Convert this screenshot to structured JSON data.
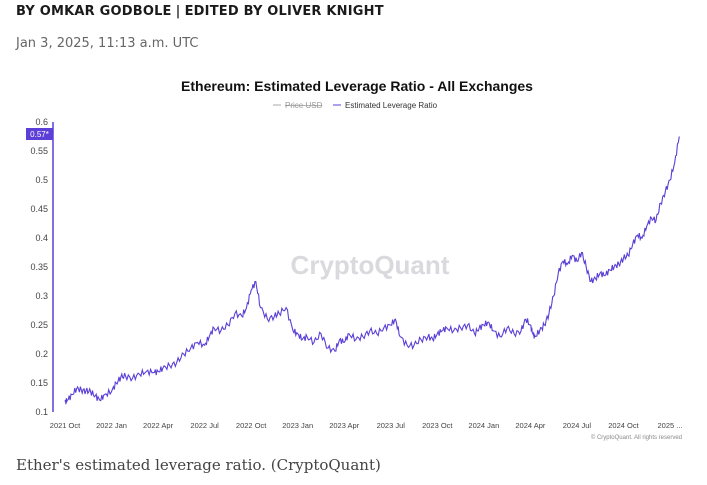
{
  "article": {
    "author": "BY OMKAR GODBOLE",
    "separator": "|",
    "editor": "EDITED BY OLIVER KNIGHT",
    "date": "Jan 3, 2025, 11:13 a.m. UTC",
    "caption": "Ether's estimated leverage ratio. (CryptoQuant)"
  },
  "chart_data": {
    "type": "line",
    "title": "Ethereum: Estimated Leverage Ratio - All Exchanges",
    "legend": [
      {
        "name": "Price USD",
        "hidden": true,
        "color": "#aaaaaa"
      },
      {
        "name": "Estimated Leverage Ratio",
        "hidden": false,
        "color": "#5b3fd6"
      }
    ],
    "legend_position": "top-center",
    "xlabel": "",
    "ylabel": "",
    "ylim": [
      0.1,
      0.6
    ],
    "yticks": [
      0.1,
      0.15,
      0.2,
      0.25,
      0.3,
      0.35,
      0.4,
      0.45,
      0.5,
      0.55,
      0.6
    ],
    "ytick_labels": [
      "0.1",
      "0.15",
      "0.2",
      "0.25",
      "0.3",
      "0.35",
      "0.4",
      "0.45",
      "0.5",
      "0.55",
      "0.6"
    ],
    "xlim": [
      "2021-10",
      "2025-01"
    ],
    "xtick_labels": [
      "2021 Oct",
      "2022 Jan",
      "2022 Apr",
      "2022 Jul",
      "2022 Oct",
      "2023 Jan",
      "2023 Apr",
      "2023 Jul",
      "2023 Oct",
      "2024 Jan",
      "2024 Apr",
      "2024 Jul",
      "2024 Oct",
      "2025 ..."
    ],
    "current_value_label": "0.57*",
    "watermark": "CryptoQuant",
    "credit": "© CryptoQuant. All rights reserved",
    "grid": false,
    "series": [
      {
        "name": "Estimated Leverage Ratio",
        "color": "#5b3fd6",
        "x": [
          0,
          0.05,
          0.15,
          0.25,
          0.35,
          0.45,
          0.55,
          0.65,
          0.75,
          0.85,
          1.0,
          1.1,
          1.2,
          1.3,
          1.45,
          1.6,
          1.75,
          1.9,
          2.0,
          2.1,
          2.25,
          2.4,
          2.55,
          2.7,
          2.85,
          3.0,
          3.1,
          3.2,
          3.35,
          3.5,
          3.65,
          3.8,
          3.9,
          4.0,
          4.1,
          4.2,
          4.35,
          4.5,
          4.6,
          4.75,
          4.9,
          5.0,
          5.1,
          5.2,
          5.35,
          5.5,
          5.65,
          5.8,
          5.9,
          6.0,
          6.1,
          6.25,
          6.4,
          6.55,
          6.7,
          6.85,
          7.0,
          7.1,
          7.2,
          7.35,
          7.5,
          7.65,
          7.8,
          7.9,
          8.0,
          8.1,
          8.2,
          8.35,
          8.5,
          8.65,
          8.8,
          8.9,
          9.0,
          9.1,
          9.2,
          9.35,
          9.5,
          9.65,
          9.8,
          9.9,
          10.0,
          10.05,
          10.1,
          10.2,
          10.3,
          10.4,
          10.5,
          10.6,
          10.7,
          10.8,
          10.9,
          11.0,
          11.1,
          11.2,
          11.3,
          11.4,
          11.5,
          11.6,
          11.7,
          11.8,
          11.9,
          12.0,
          12.1,
          12.2,
          12.3,
          12.4,
          12.5,
          12.6,
          12.7,
          12.8,
          12.9,
          13.0,
          13.1,
          13.2
        ],
        "values": [
          0.118,
          0.12,
          0.13,
          0.14,
          0.138,
          0.136,
          0.135,
          0.128,
          0.12,
          0.13,
          0.135,
          0.15,
          0.16,
          0.162,
          0.158,
          0.165,
          0.17,
          0.168,
          0.17,
          0.175,
          0.18,
          0.185,
          0.2,
          0.21,
          0.22,
          0.215,
          0.23,
          0.245,
          0.24,
          0.25,
          0.27,
          0.265,
          0.28,
          0.31,
          0.325,
          0.28,
          0.26,
          0.265,
          0.27,
          0.28,
          0.24,
          0.235,
          0.225,
          0.23,
          0.22,
          0.235,
          0.21,
          0.205,
          0.225,
          0.22,
          0.235,
          0.225,
          0.23,
          0.24,
          0.235,
          0.245,
          0.25,
          0.26,
          0.23,
          0.215,
          0.215,
          0.225,
          0.23,
          0.225,
          0.235,
          0.24,
          0.245,
          0.24,
          0.245,
          0.25,
          0.235,
          0.245,
          0.25,
          0.255,
          0.24,
          0.23,
          0.245,
          0.235,
          0.24,
          0.26,
          0.25,
          0.235,
          0.23,
          0.24,
          0.25,
          0.27,
          0.3,
          0.34,
          0.36,
          0.355,
          0.37,
          0.36,
          0.375,
          0.35,
          0.325,
          0.33,
          0.34,
          0.335,
          0.345,
          0.35,
          0.355,
          0.365,
          0.37,
          0.39,
          0.405,
          0.4,
          0.42,
          0.435,
          0.43,
          0.46,
          0.48,
          0.5,
          0.53,
          0.575
        ]
      }
    ]
  }
}
